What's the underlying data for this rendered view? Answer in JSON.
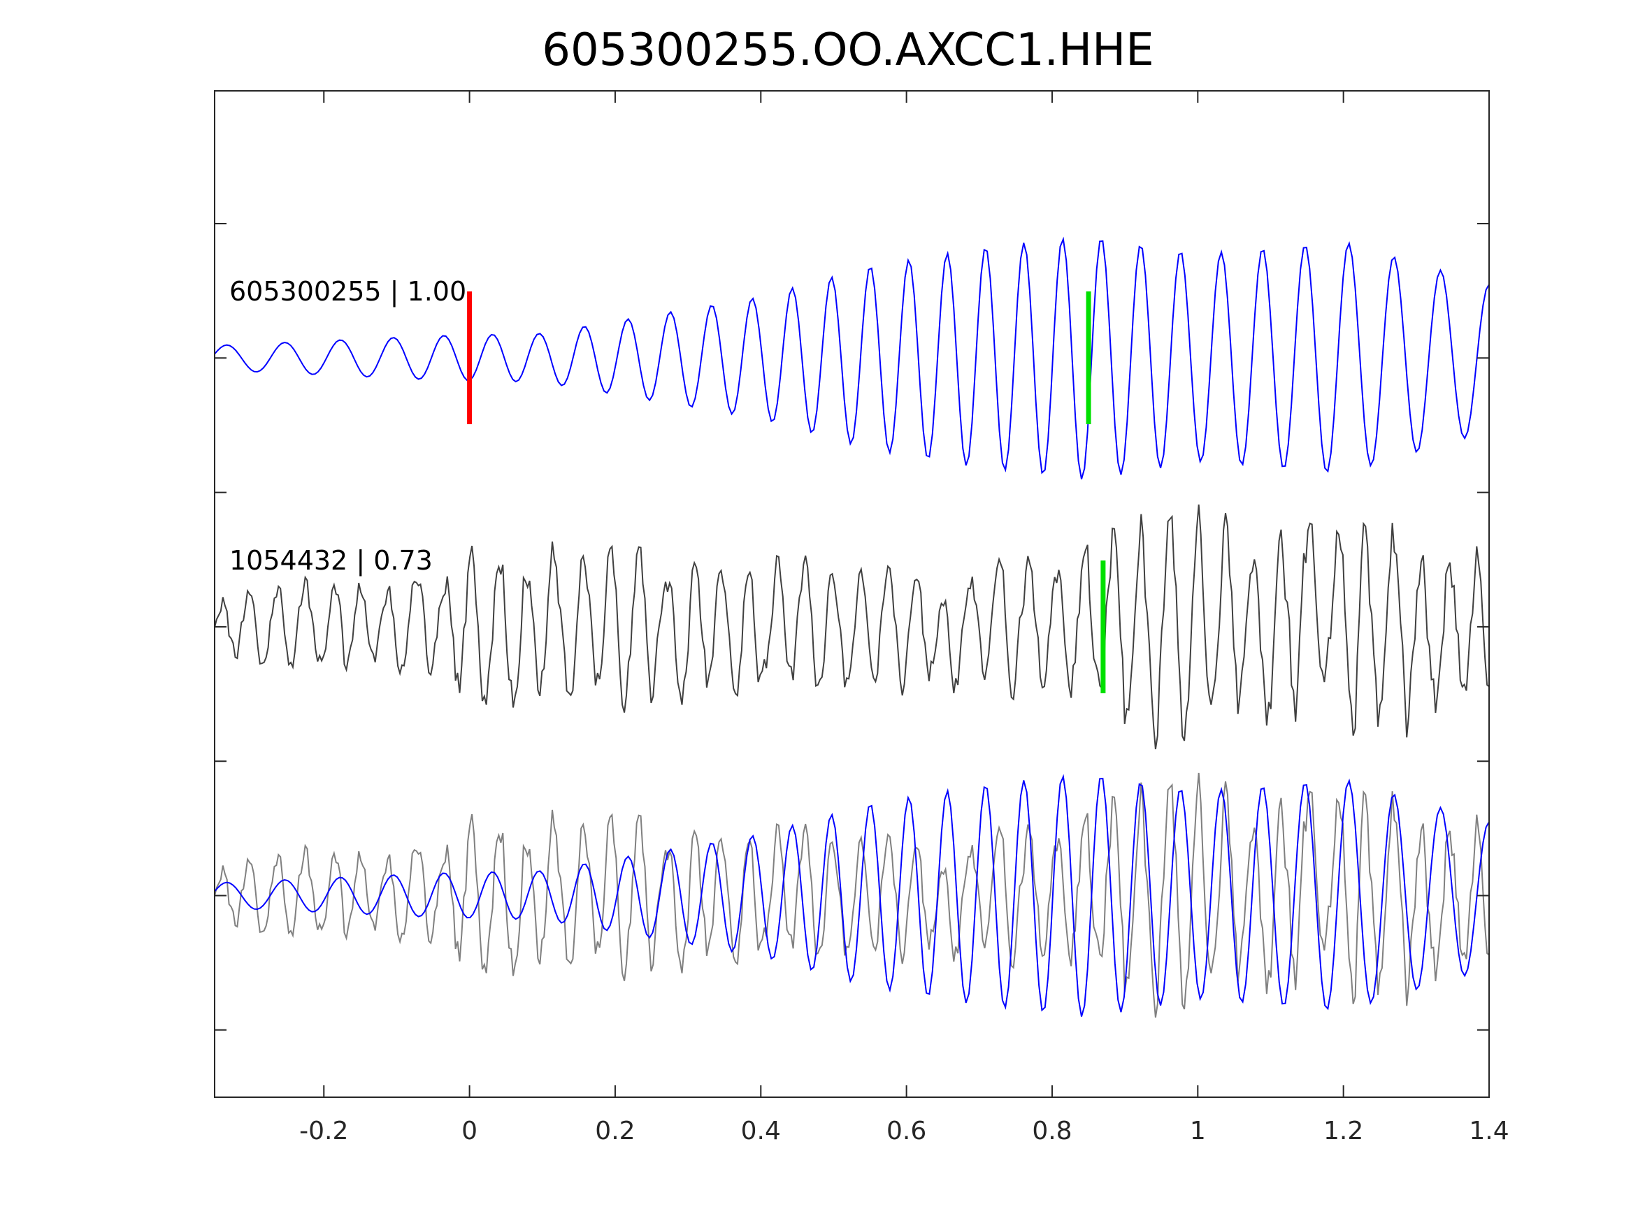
{
  "chart_data": {
    "type": "line",
    "title": "605300255.OO.AXCC1.HHE",
    "xlabel": "",
    "ylabel": "",
    "xlim": [
      -0.35,
      1.4
    ],
    "x_ticks": [
      -0.2,
      0,
      0.2,
      0.4,
      0.6,
      0.8,
      1,
      1.2,
      1.4
    ],
    "x_tick_labels": [
      "-0.2",
      "0",
      "0.2",
      "0.4",
      "0.6",
      "0.8",
      "1",
      "1.2",
      "1.4"
    ],
    "y_ticks_count": 7,
    "y_tick_labels_visible": false,
    "grid": false,
    "colors": {
      "template_trace": "#0000ff",
      "detected_trace": "#404040",
      "overlay_detected_trace": "#808080",
      "p_pick": "#ff0000",
      "s_pick": "#00e000",
      "axes": "#262626"
    },
    "panels": [
      {
        "name": "template",
        "label": "605300255 | 1.00",
        "series_color": "template_trace",
        "envelope": [
          [
            -0.35,
            0.1
          ],
          [
            -0.05,
            0.18
          ],
          [
            0.1,
            0.2
          ],
          [
            0.25,
            0.35
          ],
          [
            0.4,
            0.5
          ],
          [
            0.55,
            0.75
          ],
          [
            0.7,
            0.9
          ],
          [
            0.85,
            1.0
          ],
          [
            1.0,
            0.85
          ],
          [
            1.2,
            0.95
          ],
          [
            1.4,
            0.6
          ]
        ],
        "picks": [
          {
            "phase": "P",
            "x": 0.0,
            "color": "p_pick"
          },
          {
            "phase": "S",
            "x": 0.85,
            "color": "s_pick"
          }
        ]
      },
      {
        "name": "detection",
        "label": "1054432 | 0.73",
        "series_color": "detected_trace",
        "envelope": [
          [
            -0.35,
            0.3
          ],
          [
            -0.1,
            0.5
          ],
          [
            0.0,
            0.7
          ],
          [
            0.2,
            0.65
          ],
          [
            0.4,
            0.6
          ],
          [
            0.6,
            0.55
          ],
          [
            0.8,
            0.55
          ],
          [
            0.9,
            1.0
          ],
          [
            1.1,
            0.85
          ],
          [
            1.27,
            1.0
          ],
          [
            1.4,
            0.7
          ]
        ],
        "picks": [
          {
            "phase": "S",
            "x": 0.87,
            "color": "s_pick"
          }
        ]
      },
      {
        "name": "overlay",
        "label": "",
        "overlay_of": [
          "template",
          "detection"
        ]
      }
    ]
  }
}
